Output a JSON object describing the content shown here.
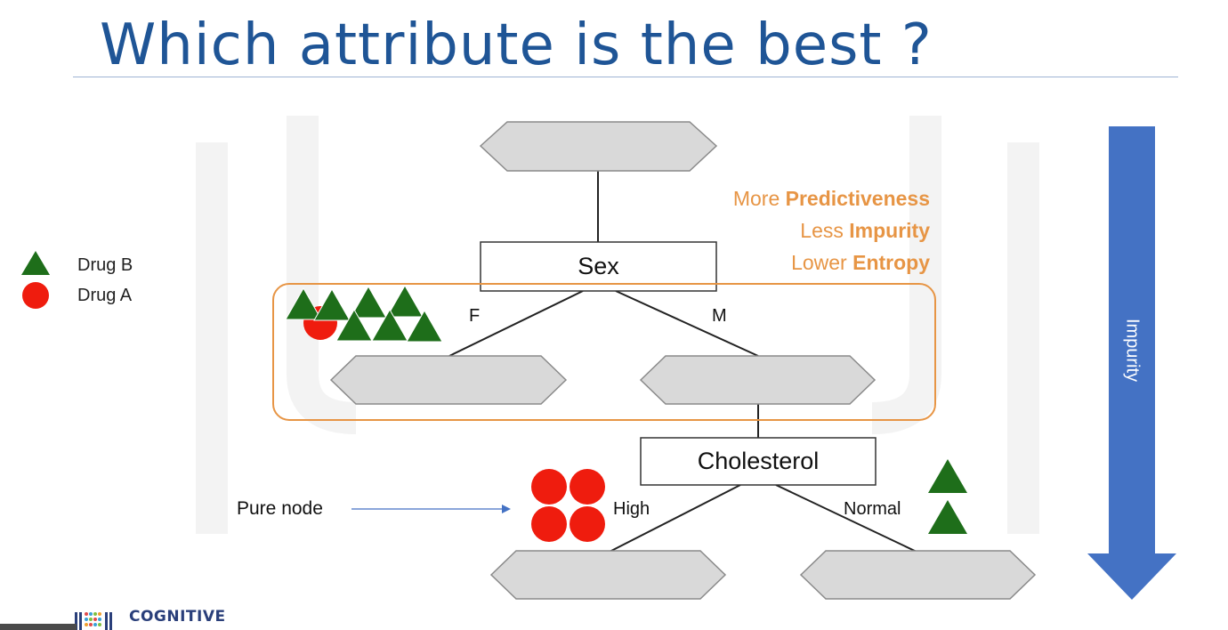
{
  "slide": {
    "title": "Which attribute is the best ?"
  },
  "legend": [
    {
      "label": "Drug B",
      "icon": "triangle-icon",
      "color": "#1e6e1a"
    },
    {
      "label": "Drug A",
      "icon": "circle-icon",
      "color": "#ef1c0e"
    }
  ],
  "tree": {
    "root_label": "",
    "node_sex": "Sex",
    "node_cholesterol": "Cholesterol",
    "edge_f": "F",
    "edge_m": "M",
    "edge_high": "High",
    "edge_normal": "Normal"
  },
  "annotations": {
    "line1_prefix": "More ",
    "line1_bold": "Predictiveness",
    "line2_prefix": "Less ",
    "line2_bold": "Impurity",
    "line3_prefix": "Lower ",
    "line3_bold": "Entropy",
    "pure_node": "Pure node",
    "impurity_arrow": "Impurity"
  },
  "logo": {
    "text": "COGNITIVE"
  },
  "colors": {
    "title": "#1f5596",
    "accent_orange": "#e79545",
    "arrow_blue": "#4472c4",
    "drug_b_green": "#1e6e1a",
    "drug_a_red": "#ef1c0e",
    "node_gray": "#d9d9d9"
  }
}
